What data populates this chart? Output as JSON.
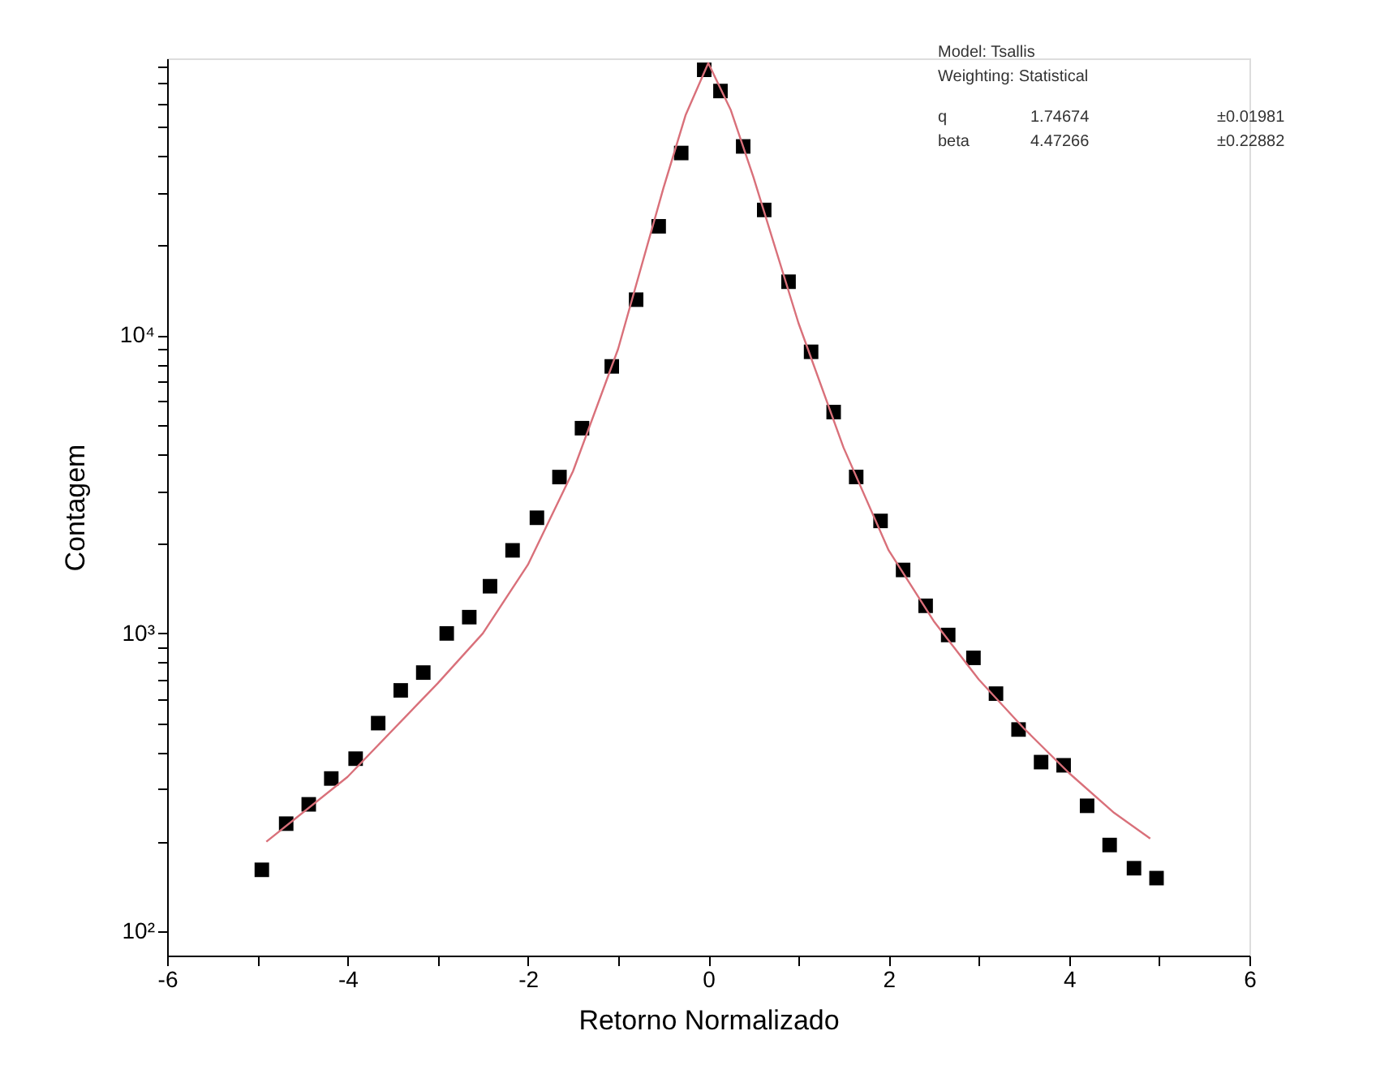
{
  "chart_data": {
    "type": "scatter",
    "xlabel": "Retorno Normalizado",
    "ylabel": "Contagem",
    "x": [
      -4.95,
      -4.68,
      -4.43,
      -4.18,
      -3.91,
      -3.66,
      -3.41,
      -3.16,
      -2.9,
      -2.65,
      -2.42,
      -2.17,
      -1.9,
      -1.65,
      -1.4,
      -1.07,
      -0.8,
      -0.55,
      -0.3,
      -0.045,
      0.135,
      0.387,
      0.62,
      0.89,
      1.14,
      1.39,
      1.64,
      1.91,
      2.16,
      2.41,
      2.66,
      2.94,
      3.19,
      3.44,
      3.69,
      3.94,
      4.2,
      4.45,
      4.72,
      4.97
    ],
    "series": [
      {
        "color": "#000000",
        "marker": "square",
        "values": [
          161,
          230,
          267,
          326,
          380,
          500,
          644,
          739,
          1000,
          1134,
          1440,
          1900,
          2444,
          3347,
          4883,
          7870,
          13180,
          23230,
          40930,
          77830,
          66070,
          43060,
          26360,
          15140,
          8810,
          5530,
          3350,
          2385,
          1633,
          1238,
          988,
          828,
          628,
          476,
          370,
          361,
          264,
          195,
          163,
          151
        ]
      },
      {
        "type": "line",
        "color": "#d9707a",
        "line_style": "solid",
        "marker": "none",
        "x": [
          -4.9,
          -4.0,
          -3.0,
          -2.5,
          -2.0,
          -1.5,
          -1.0,
          -0.5,
          -0.25,
          0.0,
          0.25,
          0.5,
          1.0,
          1.5,
          2.0,
          2.5,
          3.0,
          3.5,
          4.0,
          4.5,
          4.9
        ],
        "values": [
          200,
          330,
          680,
          1000,
          1700,
          3500,
          9000,
          31000,
          55000,
          82000,
          57000,
          34000,
          11000,
          4200,
          1900,
          1100,
          700,
          480,
          340,
          250,
          205
        ]
      }
    ],
    "log": "y",
    "grid": false,
    "xlim": [
      -6,
      6
    ],
    "xticks": [
      -6,
      {
        "value": -5,
        "label": null
      },
      -4,
      {
        "value": -3,
        "label": null
      },
      -2,
      {
        "value": -1,
        "label": null
      },
      0,
      {
        "value": 1,
        "label": null
      },
      2,
      {
        "value": 3,
        "label": null
      },
      4,
      {
        "value": 5,
        "label": null
      },
      6
    ],
    "ylim": [
      83,
      85000
    ],
    "yticks": [
      {
        "value": 100,
        "label": "10²"
      },
      {
        "value": 200,
        "label": null
      },
      {
        "value": 300,
        "label": null
      },
      {
        "value": 400,
        "label": null
      },
      {
        "value": 500,
        "label": null
      },
      {
        "value": 600,
        "label": null
      },
      {
        "value": 700,
        "label": null
      },
      {
        "value": 800,
        "label": null
      },
      {
        "value": 900,
        "label": null
      },
      {
        "value": 1000,
        "label": "10³"
      },
      {
        "value": 2000,
        "label": null
      },
      {
        "value": 3000,
        "label": null
      },
      {
        "value": 4000,
        "label": null
      },
      {
        "value": 5000,
        "label": null
      },
      {
        "value": 6000,
        "label": null
      },
      {
        "value": 7000,
        "label": null
      },
      {
        "value": 8000,
        "label": null
      },
      {
        "value": 9000,
        "label": null
      },
      {
        "value": 10000,
        "label": "10⁴"
      },
      {
        "value": 20000,
        "label": null
      },
      {
        "value": 30000,
        "label": null
      },
      {
        "value": 40000,
        "label": null
      },
      {
        "value": 50000,
        "label": null
      },
      {
        "value": 60000,
        "label": null
      },
      {
        "value": 70000,
        "label": null
      },
      {
        "value": 80000,
        "label": null
      }
    ],
    "annotations": [
      "Model: Tsallis",
      "Weighting: Statistical",
      "q",
      "1.74674",
      "±0.01981",
      "beta",
      "4.47266",
      "±0.22882"
    ]
  }
}
